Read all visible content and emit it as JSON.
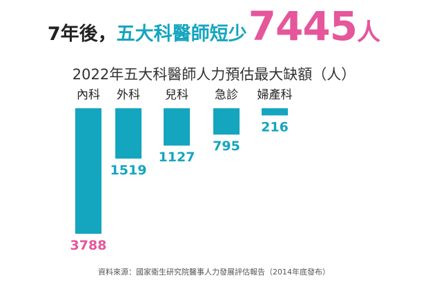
{
  "headline": {
    "part1": "7年後，",
    "part2": "五大科醫師短少",
    "number": "7445",
    "unit": "人"
  },
  "subtitle": "2022年五大科醫師人力預估最大缺額（人）",
  "source": "資料來源：國家衛生研究院醫事人力發展評估報告（2014年底發布）",
  "colors": {
    "bar": "#14a5bf",
    "highlight": "#e5569b",
    "title_dark": "#222222"
  },
  "chart_data": {
    "type": "bar",
    "orientation": "vertical-downward",
    "title": "2022年五大科醫師人力預估最大缺額（人）",
    "categories": [
      "內科",
      "外科",
      "兒科",
      "急診",
      "婦產科"
    ],
    "values": [
      3788,
      1519,
      1127,
      795,
      216
    ],
    "highlight_index": 0,
    "ylim": [
      0,
      3788
    ],
    "grid": false,
    "legend": "none"
  }
}
